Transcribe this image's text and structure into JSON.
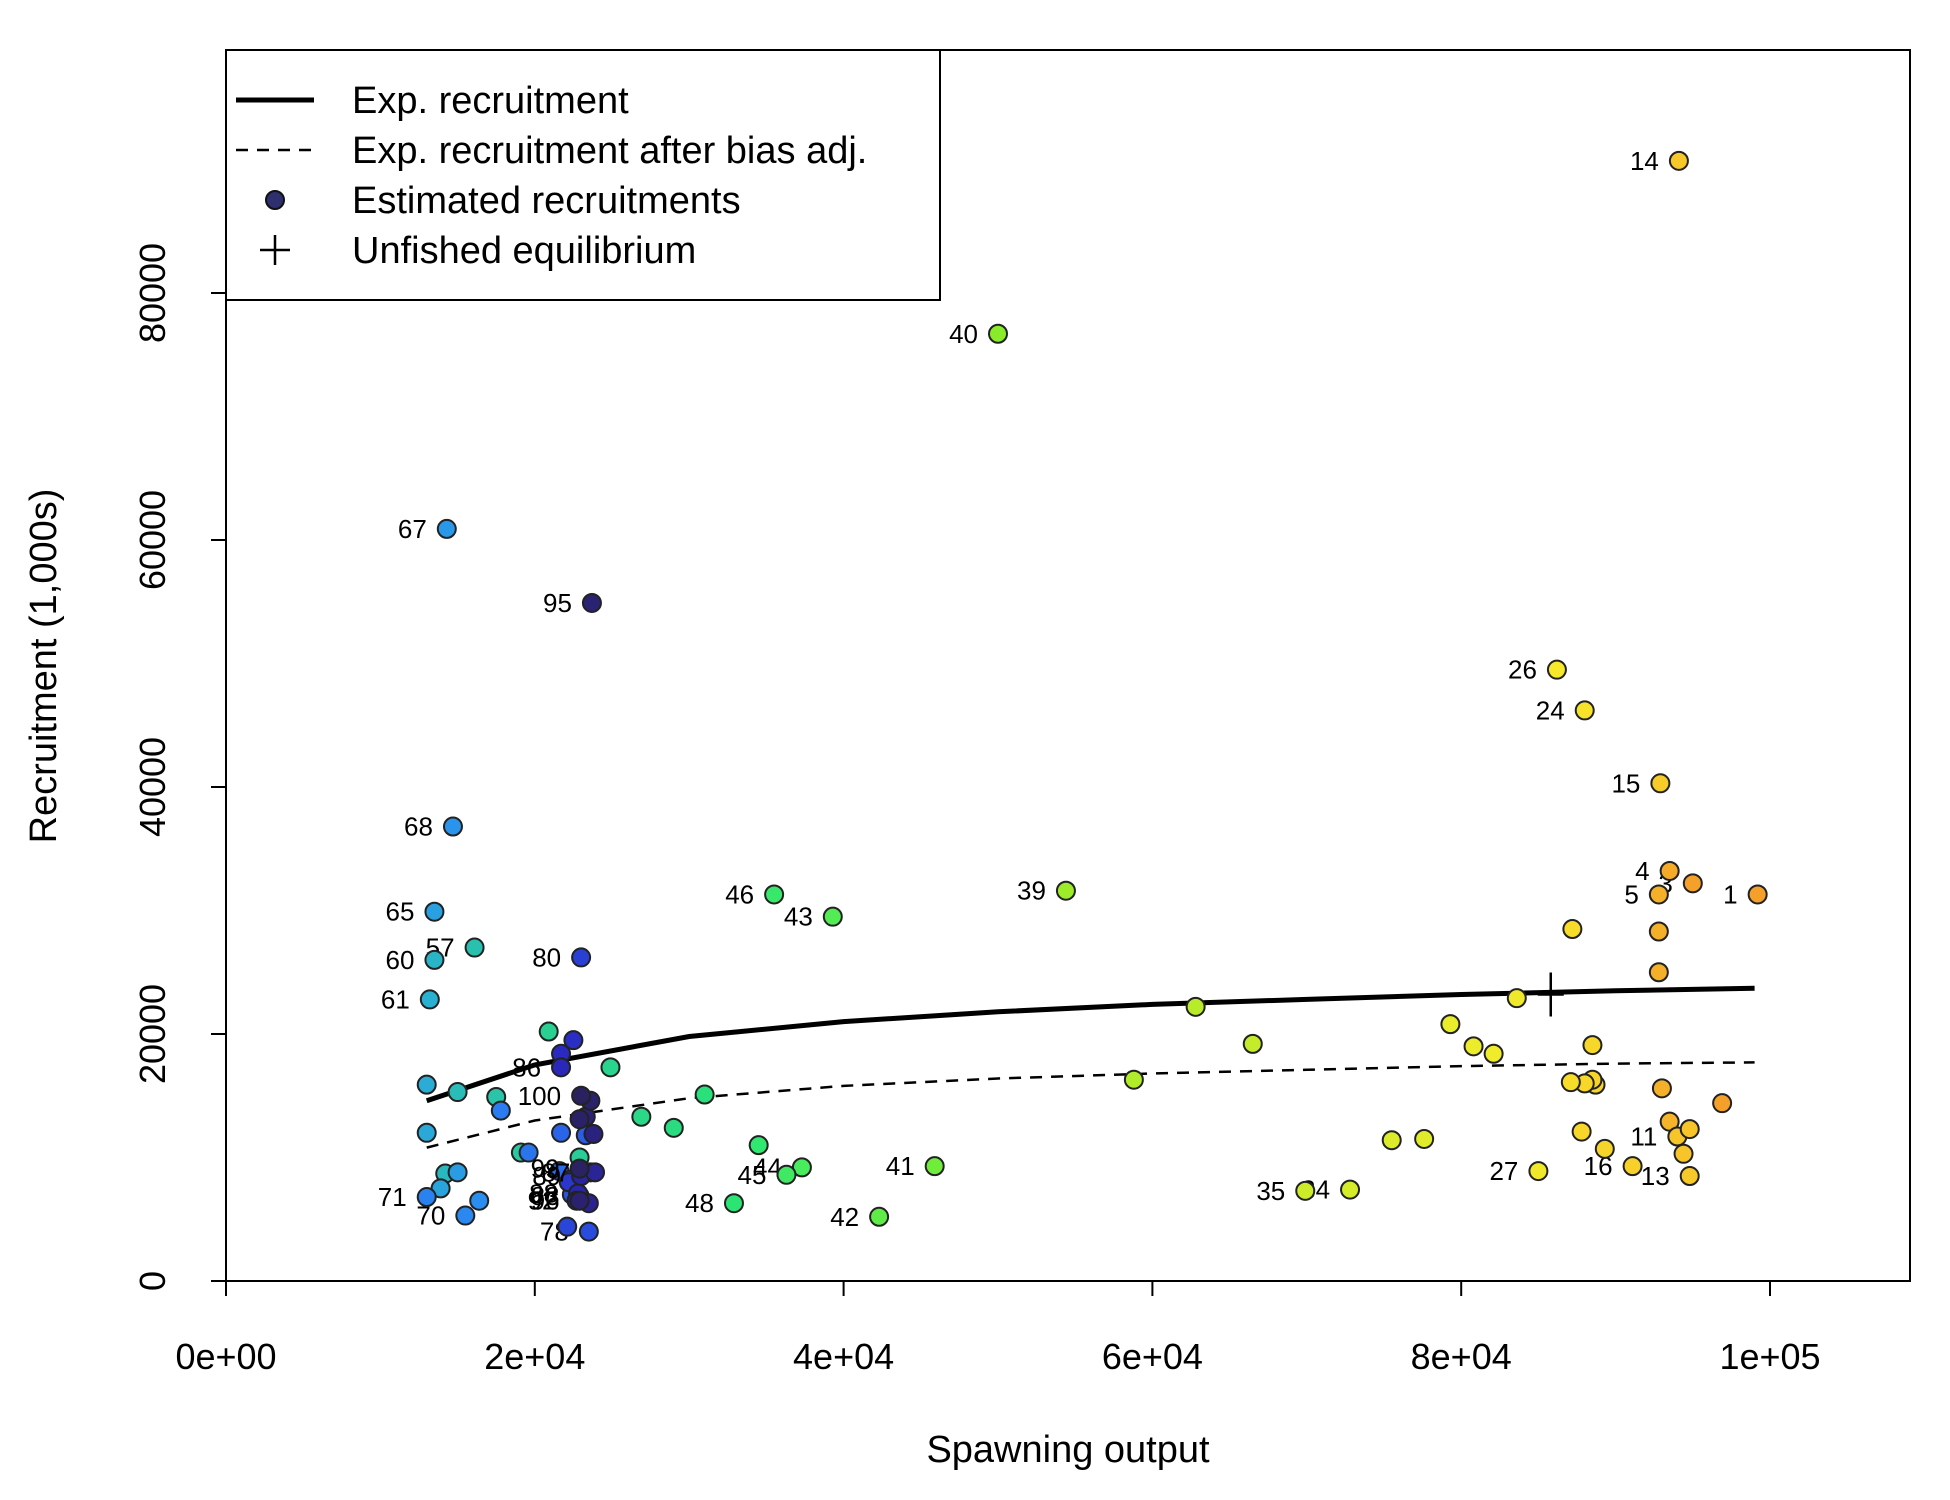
{
  "chart_data": {
    "type": "scatter",
    "xlabel": "Spawning output",
    "ylabel": "Recruitment (1,000s)",
    "xlim": [
      0,
      110000
    ],
    "ylim": [
      0,
      100000
    ],
    "x_ticks": [
      0,
      20000,
      40000,
      60000,
      80000,
      100000
    ],
    "x_tick_labels": [
      "0e+00",
      "2e+04",
      "4e+04",
      "6e+04",
      "8e+04",
      "1e+05"
    ],
    "y_ticks": [
      0,
      20000,
      40000,
      60000,
      80000
    ],
    "y_tick_labels": [
      "0",
      "20000",
      "40000",
      "60000",
      "80000"
    ],
    "grid": false,
    "legend_position": "top-left",
    "legend": [
      {
        "label": "Exp. recruitment",
        "symbol": "line-solid"
      },
      {
        "label": "Exp. recruitment after bias adj.",
        "symbol": "line-dashed"
      },
      {
        "label": "Estimated recruitments",
        "symbol": "circle"
      },
      {
        "label": "Unfished equilibrium",
        "symbol": "plus"
      }
    ],
    "expected_recruitment_curve": {
      "x": [
        13000,
        20000,
        30000,
        40000,
        50000,
        60000,
        70000,
        80000,
        90000,
        99000
      ],
      "y": [
        14600,
        17500,
        19800,
        21000,
        21800,
        22400,
        22800,
        23200,
        23500,
        23700
      ]
    },
    "bias_adjusted_curve": {
      "x": [
        13000,
        20000,
        30000,
        40000,
        50000,
        60000,
        70000,
        80000,
        90000,
        99000
      ],
      "y": [
        10800,
        13000,
        14800,
        15800,
        16400,
        16800,
        17100,
        17400,
        17600,
        17700
      ]
    },
    "unfished_equilibrium": {
      "x": 85800,
      "y": 23200
    },
    "point_color_scale": [
      "#f58220",
      "#f7c61f",
      "#f0f020",
      "#c8ef30",
      "#5cf050",
      "#20d080",
      "#20b0c0",
      "#2080e0",
      "#1830e0",
      "#182070"
    ],
    "points": [
      {
        "label": "1",
        "x": 99200,
        "y": 31300,
        "color": "#f5a02a"
      },
      {
        "label": "3",
        "x": 95000,
        "y": 32200,
        "color": "#f5a02a"
      },
      {
        "label": "4",
        "x": 93500,
        "y": 33200,
        "color": "#f5aa2a"
      },
      {
        "label": "5",
        "x": 92800,
        "y": 31300,
        "color": "#f5b02a"
      },
      {
        "label": "",
        "x": 92800,
        "y": 28300,
        "color": "#f5b02a"
      },
      {
        "label": "",
        "x": 92800,
        "y": 25000,
        "color": "#f5b02a"
      },
      {
        "label": "",
        "x": 96900,
        "y": 14400,
        "color": "#f5a02a"
      },
      {
        "label": "",
        "x": 93000,
        "y": 15600,
        "color": "#f5b02a"
      },
      {
        "label": "",
        "x": 93500,
        "y": 12900,
        "color": "#f5b42a"
      },
      {
        "label": "11",
        "x": 94000,
        "y": 11700,
        "color": "#f7c42a"
      },
      {
        "label": "",
        "x": 94800,
        "y": 12300,
        "color": "#f7c42a"
      },
      {
        "label": "",
        "x": 94400,
        "y": 10300,
        "color": "#f7c42a"
      },
      {
        "label": "13",
        "x": 94800,
        "y": 8500,
        "color": "#f7c82a"
      },
      {
        "label": "14",
        "x": 94100,
        "y": 90700,
        "color": "#f7c82a"
      },
      {
        "label": "15",
        "x": 92900,
        "y": 40300,
        "color": "#f7cc2a"
      },
      {
        "label": "16",
        "x": 91100,
        "y": 9300,
        "color": "#f7d02a"
      },
      {
        "label": "",
        "x": 89300,
        "y": 10700,
        "color": "#f7d42a"
      },
      {
        "label": "",
        "x": 88700,
        "y": 15900,
        "color": "#f7d42a"
      },
      {
        "label": "",
        "x": 88500,
        "y": 16300,
        "color": "#f7d42a"
      },
      {
        "label": "",
        "x": 88500,
        "y": 19100,
        "color": "#f7d82a"
      },
      {
        "label": "",
        "x": 88000,
        "y": 16000,
        "color": "#f7d82a"
      },
      {
        "label": "",
        "x": 87800,
        "y": 12100,
        "color": "#f7d82a"
      },
      {
        "label": "",
        "x": 87100,
        "y": 16100,
        "color": "#f7dc2a"
      },
      {
        "label": "",
        "x": 87200,
        "y": 28500,
        "color": "#f7dc2a"
      },
      {
        "label": "24",
        "x": 88000,
        "y": 46200,
        "color": "#f7e42a"
      },
      {
        "label": "26",
        "x": 86200,
        "y": 49500,
        "color": "#f7e82a"
      },
      {
        "label": "27",
        "x": 85000,
        "y": 8900,
        "color": "#f2e82a"
      },
      {
        "label": "",
        "x": 83600,
        "y": 22900,
        "color": "#f0e82a"
      },
      {
        "label": "",
        "x": 82100,
        "y": 18400,
        "color": "#f0ec2a"
      },
      {
        "label": "",
        "x": 80800,
        "y": 19000,
        "color": "#ecec2a"
      },
      {
        "label": "",
        "x": 79300,
        "y": 20800,
        "color": "#e8ec2a"
      },
      {
        "label": "",
        "x": 77600,
        "y": 11500,
        "color": "#e0ec2a"
      },
      {
        "label": "",
        "x": 75500,
        "y": 11400,
        "color": "#dcec2a"
      },
      {
        "label": "34",
        "x": 72800,
        "y": 7400,
        "color": "#d4ec2a"
      },
      {
        "label": "35",
        "x": 69900,
        "y": 7300,
        "color": "#ccec2a"
      },
      {
        "label": "",
        "x": 66500,
        "y": 19200,
        "color": "#c4ec2a"
      },
      {
        "label": "",
        "x": 62800,
        "y": 22200,
        "color": "#b8ec2a"
      },
      {
        "label": "",
        "x": 58800,
        "y": 16300,
        "color": "#b0ec2a"
      },
      {
        "label": "39",
        "x": 54400,
        "y": 31600,
        "color": "#9cec2a"
      },
      {
        "label": "40",
        "x": 50000,
        "y": 76700,
        "color": "#88ec2a"
      },
      {
        "label": "41",
        "x": 45900,
        "y": 9300,
        "color": "#70ec3a"
      },
      {
        "label": "42",
        "x": 42300,
        "y": 5200,
        "color": "#60ec48"
      },
      {
        "label": "43",
        "x": 39300,
        "y": 29500,
        "color": "#54ec54"
      },
      {
        "label": "44",
        "x": 37300,
        "y": 9200,
        "color": "#48ec5c"
      },
      {
        "label": "45",
        "x": 36300,
        "y": 8600,
        "color": "#40e864"
      },
      {
        "label": "46",
        "x": 35500,
        "y": 31300,
        "color": "#38e86a"
      },
      {
        "label": "",
        "x": 34500,
        "y": 11000,
        "color": "#30e870"
      },
      {
        "label": "48",
        "x": 32900,
        "y": 6300,
        "color": "#2ce474"
      },
      {
        "label": "",
        "x": 31000,
        "y": 15100,
        "color": "#2ae07a"
      },
      {
        "label": "",
        "x": 29000,
        "y": 12400,
        "color": "#2adc80"
      },
      {
        "label": "",
        "x": 26900,
        "y": 13300,
        "color": "#2ad886"
      },
      {
        "label": "",
        "x": 24900,
        "y": 17300,
        "color": "#2ad48c"
      },
      {
        "label": "",
        "x": 20900,
        "y": 20200,
        "color": "#2ad092"
      },
      {
        "label": "",
        "x": 22900,
        "y": 10000,
        "color": "#2acc98"
      },
      {
        "label": "",
        "x": 19100,
        "y": 10400,
        "color": "#2ac8a0"
      },
      {
        "label": "",
        "x": 17500,
        "y": 14900,
        "color": "#2ac4a8"
      },
      {
        "label": "57",
        "x": 16100,
        "y": 27000,
        "color": "#2ac0b0"
      },
      {
        "label": "",
        "x": 15000,
        "y": 15300,
        "color": "#2abcb8"
      },
      {
        "label": "",
        "x": 14200,
        "y": 8700,
        "color": "#2ab8c0"
      },
      {
        "label": "60",
        "x": 13500,
        "y": 26000,
        "color": "#2ab4c8"
      },
      {
        "label": "61",
        "x": 13200,
        "y": 22800,
        "color": "#2ab0d0"
      },
      {
        "label": "",
        "x": 13000,
        "y": 15900,
        "color": "#2aacd4"
      },
      {
        "label": "",
        "x": 13000,
        "y": 12000,
        "color": "#2aa8d8"
      },
      {
        "label": "",
        "x": 13900,
        "y": 7500,
        "color": "#2aa4dc"
      },
      {
        "label": "65",
        "x": 13500,
        "y": 29900,
        "color": "#2aa0e0"
      },
      {
        "label": "",
        "x": 15000,
        "y": 8800,
        "color": "#2a9ce4"
      },
      {
        "label": "67",
        "x": 14300,
        "y": 60900,
        "color": "#2a98e8"
      },
      {
        "label": "68",
        "x": 14700,
        "y": 36800,
        "color": "#2a94ec"
      },
      {
        "label": "",
        "x": 16400,
        "y": 6500,
        "color": "#2a8ef0"
      },
      {
        "label": "70",
        "x": 15500,
        "y": 5300,
        "color": "#2a88f0"
      },
      {
        "label": "71",
        "x": 13000,
        "y": 6800,
        "color": "#2a82f0"
      },
      {
        "label": "",
        "x": 17800,
        "y": 13800,
        "color": "#2a7cf0"
      },
      {
        "label": "",
        "x": 19600,
        "y": 10400,
        "color": "#2a74ec"
      },
      {
        "label": "",
        "x": 21600,
        "y": 8900,
        "color": "#2a6cec"
      },
      {
        "label": "",
        "x": 21700,
        "y": 12000,
        "color": "#2a64e8"
      },
      {
        "label": "",
        "x": 23300,
        "y": 11800,
        "color": "#2a5ce4"
      },
      {
        "label": "",
        "x": 22400,
        "y": 7000,
        "color": "#2a54e0"
      },
      {
        "label": "78",
        "x": 23500,
        "y": 4000,
        "color": "#2a4cdc"
      },
      {
        "label": "",
        "x": 22100,
        "y": 4400,
        "color": "#2a46d8"
      },
      {
        "label": "80",
        "x": 23000,
        "y": 26200,
        "color": "#2a40d4"
      },
      {
        "label": "",
        "x": 22300,
        "y": 8200,
        "color": "#2a3ad0"
      },
      {
        "label": "",
        "x": 22200,
        "y": 8000,
        "color": "#2a36cc"
      },
      {
        "label": "83",
        "x": 22900,
        "y": 6900,
        "color": "#2a32c8"
      },
      {
        "label": "",
        "x": 22500,
        "y": 19500,
        "color": "#2a2ec4"
      },
      {
        "label": "",
        "x": 21700,
        "y": 18400,
        "color": "#2a2ac0"
      },
      {
        "label": "86",
        "x": 21700,
        "y": 17300,
        "color": "#2a28b8"
      },
      {
        "label": "87",
        "x": 23600,
        "y": 8800,
        "color": "#2a26b0"
      },
      {
        "label": "88",
        "x": 22800,
        "y": 7100,
        "color": "#2a26a8"
      },
      {
        "label": "89",
        "x": 23000,
        "y": 8500,
        "color": "#2a249e"
      },
      {
        "label": "",
        "x": 23900,
        "y": 8800,
        "color": "#2a2496"
      },
      {
        "label": "",
        "x": 23500,
        "y": 6300,
        "color": "#2a228e"
      },
      {
        "label": "92",
        "x": 22700,
        "y": 6500,
        "color": "#2a2286"
      },
      {
        "label": "",
        "x": 23800,
        "y": 11900,
        "color": "#2a227e"
      },
      {
        "label": "",
        "x": 23300,
        "y": 13300,
        "color": "#2a2278"
      },
      {
        "label": "95",
        "x": 23700,
        "y": 54900,
        "color": "#2a2272"
      },
      {
        "label": "96",
        "x": 22900,
        "y": 6500,
        "color": "#2a226e"
      },
      {
        "label": "",
        "x": 23600,
        "y": 14600,
        "color": "#2a226a"
      },
      {
        "label": "",
        "x": 22900,
        "y": 13100,
        "color": "#2a2266"
      },
      {
        "label": "99",
        "x": 22900,
        "y": 9100,
        "color": "#2a2262"
      },
      {
        "label": "100",
        "x": 23000,
        "y": 15000,
        "color": "#2a225e"
      }
    ]
  }
}
